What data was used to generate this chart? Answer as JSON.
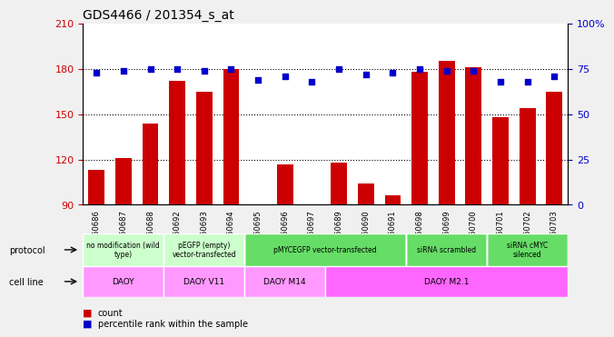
{
  "title": "GDS4466 / 201354_s_at",
  "samples": [
    "GSM550686",
    "GSM550687",
    "GSM550688",
    "GSM550692",
    "GSM550693",
    "GSM550694",
    "GSM550695",
    "GSM550696",
    "GSM550697",
    "GSM550689",
    "GSM550690",
    "GSM550691",
    "GSM550698",
    "GSM550699",
    "GSM550700",
    "GSM550701",
    "GSM550702",
    "GSM550703"
  ],
  "counts": [
    113,
    121,
    144,
    172,
    165,
    180,
    88,
    117,
    90,
    118,
    104,
    96,
    178,
    185,
    181,
    148,
    154,
    165
  ],
  "percentiles": [
    73,
    74,
    75,
    75,
    74,
    75,
    69,
    71,
    68,
    75,
    72,
    73,
    75,
    74,
    74,
    68,
    68,
    71
  ],
  "ylim_left": [
    90,
    210
  ],
  "ylim_right": [
    0,
    100
  ],
  "yticks_left": [
    90,
    120,
    150,
    180,
    210
  ],
  "yticks_right": [
    0,
    25,
    50,
    75,
    100
  ],
  "bar_color": "#cc0000",
  "scatter_color": "#0000cc",
  "protocol_groups": [
    {
      "label": "no modification (wild\ntype)",
      "start": 0,
      "end": 3,
      "color": "#ccffcc"
    },
    {
      "label": "pEGFP (empty)\nvector-transfected",
      "start": 3,
      "end": 6,
      "color": "#ccffcc"
    },
    {
      "label": "pMYCEGFP vector-transfected",
      "start": 6,
      "end": 12,
      "color": "#66dd66"
    },
    {
      "label": "siRNA scrambled",
      "start": 12,
      "end": 15,
      "color": "#66dd66"
    },
    {
      "label": "siRNA cMYC\nsilenced",
      "start": 15,
      "end": 18,
      "color": "#66dd66"
    }
  ],
  "cellline_groups": [
    {
      "label": "DAOY",
      "start": 0,
      "end": 3,
      "color": "#ff99ff"
    },
    {
      "label": "DAOY V11",
      "start": 3,
      "end": 6,
      "color": "#ff99ff"
    },
    {
      "label": "DAOY M14",
      "start": 6,
      "end": 9,
      "color": "#ff99ff"
    },
    {
      "label": "DAOY M2.1",
      "start": 9,
      "end": 18,
      "color": "#ff66ff"
    }
  ],
  "legend_count_color": "#cc0000",
  "legend_pct_color": "#0000cc",
  "bg_color": "#f0f0f0",
  "plot_bg": "#ffffff",
  "grid_color": "#000000"
}
